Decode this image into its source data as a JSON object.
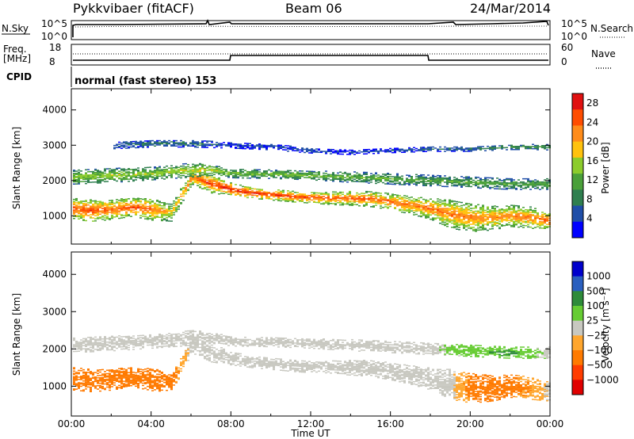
{
  "header": {
    "station": "Pykkvibaer (fitACF)",
    "beam": "Beam 06",
    "date": "24/Mar/2014"
  },
  "strips": {
    "nsky_label": "N.Sky",
    "nsky_ticks": [
      "10^5",
      "10^0"
    ],
    "nsearch_label": "N.Search",
    "nsearch_ticks": [
      "10^5",
      "10^0"
    ],
    "freq_label": "Freq.",
    "freq_unit": "[MHz]",
    "freq_ticks": [
      "18",
      "8"
    ],
    "nave_label": "Nave",
    "nave_ticks": [
      "60",
      "0"
    ],
    "cpid_label": "CPID",
    "cpid_value": "normal (fast stereo) 153"
  },
  "colors": {
    "power": [
      "#0000ff",
      "#1f4ea8",
      "#2f7f4f",
      "#4aa03a",
      "#8ccc2c",
      "#ffc20e",
      "#ff8c1a",
      "#ff4d00",
      "#e01010"
    ],
    "velocity": [
      "#e00000",
      "#ff3c00",
      "#ff7a00",
      "#ffa62e",
      "#c8c8c0",
      "#66cc33",
      "#2e8b3a",
      "#2a5fbf",
      "#0000cc"
    ],
    "ground_scatter": "#c8c8c0"
  },
  "chart_data": [
    {
      "type": "heatmap",
      "panel": "power",
      "ylabel": "Slant Range [km]",
      "xlim": [
        "00:00",
        "24:00"
      ],
      "ylim": [
        200,
        4600
      ],
      "y_ticks": [
        1000,
        2000,
        3000,
        4000
      ],
      "colorbar": {
        "label": "Power [dB]",
        "ticks": [
          4,
          8,
          12,
          16,
          20,
          24,
          28
        ],
        "range": [
          0,
          30
        ]
      },
      "bands": [
        {
          "t": [
            0,
            1,
            2,
            3,
            4,
            5,
            6,
            7,
            8,
            9,
            10,
            11,
            12,
            13,
            14,
            15,
            16,
            17,
            18,
            19,
            20,
            21,
            22,
            23,
            24
          ],
          "center_km": [
            1200,
            1150,
            1180,
            1250,
            1180,
            1100,
            2100,
            1900,
            1750,
            1650,
            1600,
            1550,
            1520,
            1500,
            1500,
            1480,
            1400,
            1300,
            1200,
            1050,
            950,
            950,
            1000,
            950,
            850
          ],
          "half_width_km": [
            300,
            300,
            280,
            260,
            300,
            250,
            200,
            250,
            180,
            150,
            150,
            150,
            160,
            180,
            200,
            220,
            230,
            250,
            300,
            400,
            400,
            350,
            300,
            300,
            250
          ],
          "power_db": [
            25,
            26,
            24,
            26,
            24,
            18,
            24,
            26,
            28,
            28,
            27,
            26,
            26,
            25,
            25,
            24,
            24,
            23,
            24,
            23,
            23,
            22,
            22,
            23,
            24
          ]
        },
        {
          "t": [
            0,
            2,
            4,
            6,
            7,
            8,
            10,
            12,
            14,
            16,
            18,
            20,
            22,
            24
          ],
          "center_km": [
            2100,
            2150,
            2200,
            2300,
            2300,
            2200,
            2180,
            2150,
            2100,
            2050,
            2000,
            1950,
            1900,
            1900
          ],
          "half_width_km": [
            200,
            200,
            180,
            200,
            150,
            120,
            120,
            130,
            150,
            150,
            150,
            150,
            150,
            150
          ],
          "power_db": [
            15,
            16,
            15,
            17,
            17,
            14,
            14,
            14,
            13,
            13,
            12,
            12,
            12,
            12
          ]
        },
        {
          "t": [
            2,
            4,
            6,
            8,
            10,
            12,
            14,
            16,
            18,
            20,
            22,
            24
          ],
          "center_km": [
            3000,
            3050,
            3050,
            3000,
            2950,
            2850,
            2800,
            2850,
            2900,
            2900,
            2950,
            2950
          ],
          "half_width_km": [
            100,
            100,
            100,
            80,
            80,
            70,
            60,
            60,
            70,
            70,
            70,
            80
          ],
          "power_db": [
            6,
            8,
            7,
            5,
            5,
            5,
            4,
            5,
            6,
            8,
            10,
            12
          ]
        }
      ]
    },
    {
      "type": "heatmap",
      "panel": "velocity",
      "ylabel": "Slant Range [km]",
      "xlabel": "Time UT",
      "x_ticks": [
        "00:00",
        "04:00",
        "08:00",
        "12:00",
        "16:00",
        "20:00",
        "00:00"
      ],
      "xlim": [
        "00:00",
        "24:00"
      ],
      "ylim": [
        200,
        4600
      ],
      "y_ticks": [
        1000,
        2000,
        3000,
        4000
      ],
      "colorbar": {
        "label": "Velocity [m s⁻¹]",
        "ticks": [
          "1000",
          "500",
          "100",
          "25",
          "−25",
          "−100",
          "−500",
          "−1000"
        ]
      },
      "bands": [
        {
          "t": [
            0,
            1,
            2,
            3,
            4,
            5,
            6,
            7,
            8,
            9,
            10,
            11,
            12,
            13,
            14,
            15,
            16,
            17,
            18,
            19,
            20,
            21,
            22,
            23,
            24
          ],
          "center_km": [
            1200,
            1150,
            1180,
            1250,
            1180,
            1100,
            2100,
            1900,
            1750,
            1650,
            1600,
            1550,
            1520,
            1500,
            1500,
            1480,
            1400,
            1300,
            1200,
            1050,
            950,
            950,
            1000,
            950,
            850
          ],
          "half_width_km": [
            300,
            300,
            280,
            260,
            300,
            250,
            200,
            250,
            180,
            150,
            150,
            150,
            160,
            180,
            200,
            220,
            230,
            250,
            300,
            400,
            400,
            350,
            300,
            300,
            250
          ],
          "velocity": [
            -300,
            -350,
            -400,
            -300,
            -200,
            -150,
            0,
            0,
            0,
            0,
            0,
            0,
            0,
            0,
            0,
            0,
            0,
            0,
            0,
            0,
            -150,
            -200,
            -150,
            -100,
            0
          ]
        },
        {
          "t": [
            0,
            2,
            4,
            6,
            7,
            8,
            10,
            12,
            14,
            16,
            18,
            20,
            22,
            24
          ],
          "center_km": [
            2100,
            2150,
            2200,
            2300,
            2300,
            2200,
            2180,
            2150,
            2100,
            2050,
            2000,
            1950,
            1900,
            1900
          ],
          "half_width_km": [
            200,
            200,
            180,
            200,
            150,
            120,
            120,
            130,
            150,
            150,
            150,
            150,
            150,
            150
          ],
          "velocity": [
            0,
            0,
            0,
            0,
            0,
            0,
            0,
            0,
            0,
            0,
            0,
            80,
            120,
            0
          ]
        }
      ]
    }
  ]
}
